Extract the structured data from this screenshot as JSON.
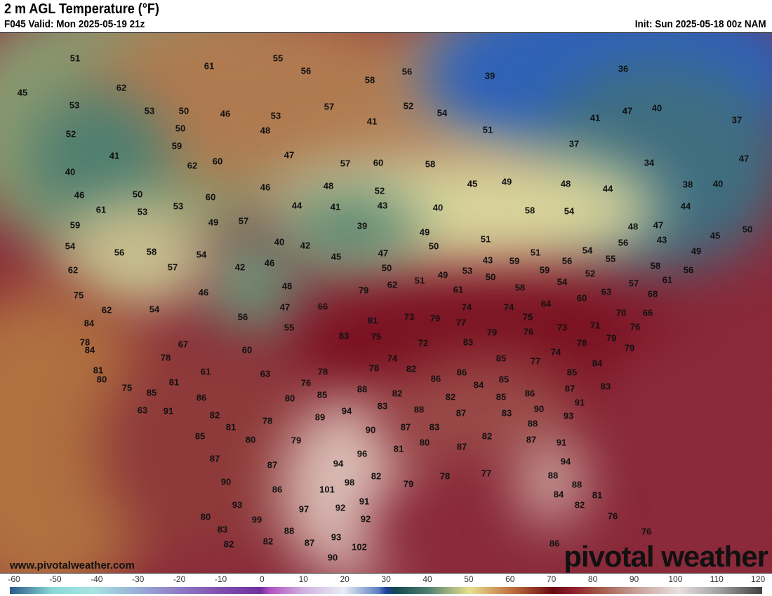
{
  "header": {
    "title": "2 m AGL Temperature (°F)",
    "valid": "F045 Valid: Mon 2025-05-19 21z",
    "init": "Init: Sun 2025-05-18 00z NAM"
  },
  "map": {
    "region": "North America (CONUS)",
    "temperature_labels": [
      51,
      61,
      55,
      56,
      58,
      56,
      39,
      36,
      45,
      62,
      53,
      53,
      50,
      46,
      53,
      57,
      52,
      54,
      47,
      40,
      37,
      52,
      50,
      48,
      41,
      51,
      41,
      37,
      59,
      47,
      41,
      62,
      60,
      57,
      60,
      58,
      34,
      47,
      40,
      46,
      50,
      60,
      46,
      48,
      52,
      45,
      49,
      48,
      44,
      38,
      40,
      61,
      53,
      53,
      44,
      41,
      43,
      40,
      58,
      54,
      44,
      59,
      49,
      57,
      39,
      49,
      48,
      47,
      45,
      50,
      54,
      56,
      58,
      54,
      40,
      42,
      45,
      47,
      50,
      51,
      51,
      54,
      56,
      43,
      49,
      62,
      57,
      42,
      46,
      50,
      49,
      53,
      43,
      59,
      56,
      55,
      58,
      56,
      59,
      52,
      75,
      48,
      79,
      62,
      51,
      61,
      50,
      58,
      54,
      57,
      61,
      62,
      54,
      46,
      47,
      66,
      74,
      74,
      64,
      60,
      63,
      68,
      84,
      56,
      55,
      81,
      73,
      79,
      77,
      75,
      76,
      73,
      71,
      70,
      76,
      66,
      78,
      67,
      83,
      75,
      72,
      79,
      83,
      78,
      79,
      79,
      84,
      60,
      74,
      74,
      85,
      77,
      84,
      78,
      81,
      61,
      63,
      78,
      78,
      82,
      86,
      85,
      80,
      81,
      76,
      86,
      84,
      85,
      86,
      87,
      83,
      75,
      85,
      86,
      80,
      85,
      88,
      82,
      85,
      82,
      91,
      63,
      91,
      82,
      94,
      83,
      88,
      87,
      83,
      90,
      89,
      78,
      81,
      90,
      87,
      83,
      88,
      93,
      85,
      80,
      79,
      82,
      87,
      91,
      87,
      96,
      81,
      80,
      87,
      87,
      94,
      94,
      90,
      86,
      101,
      98,
      82,
      79,
      78,
      77,
      88,
      88,
      84,
      81,
      93,
      97,
      92,
      91,
      82,
      76,
      80,
      99,
      92,
      83,
      88,
      76,
      82,
      82,
      87,
      93,
      102,
      86,
      90
    ]
  },
  "footer": {
    "url": "www.pivotalweather.com",
    "logo": "pivotal weather"
  },
  "colorbar": {
    "units": "°F",
    "ticks": [
      "-60",
      "-50",
      "-40",
      "-30",
      "-20",
      "-10",
      "0",
      "10",
      "20",
      "30",
      "40",
      "50",
      "60",
      "70",
      "80",
      "90",
      "100",
      "110",
      "120"
    ]
  }
}
